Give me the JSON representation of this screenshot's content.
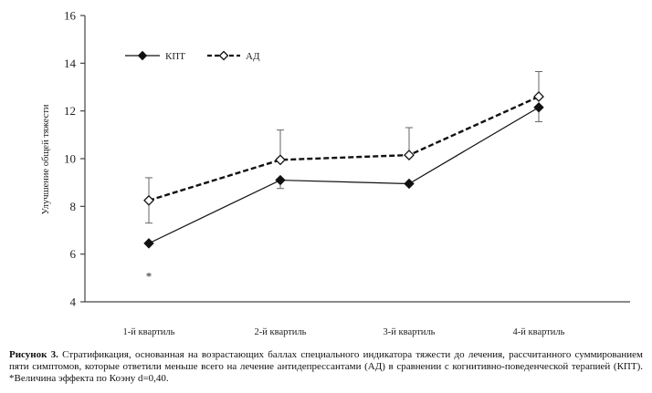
{
  "chart_data": {
    "type": "line",
    "categories": [
      "1-й квартиль",
      "2-й квартиль",
      "3-й квартиль",
      "4-й квартиль"
    ],
    "ylabel": "Улучшение общей тяжести",
    "ylim": [
      4,
      16
    ],
    "yticks": [
      "4",
      "6",
      "8",
      "10",
      "12",
      "14",
      "16"
    ],
    "legend_position": "top-left",
    "series": [
      {
        "name": "КПТ",
        "marker": "filled-diamond",
        "line_style": "solid",
        "values": [
          6.45,
          9.1,
          8.95,
          12.15
        ],
        "error_low": [
          null,
          8.75,
          null,
          11.55
        ],
        "error_high": [
          null,
          9.1,
          null,
          12.15
        ]
      },
      {
        "name": "АД",
        "marker": "open-diamond",
        "line_style": "dashed",
        "values": [
          8.25,
          9.95,
          10.15,
          12.6
        ],
        "error_low": [
          7.3,
          9.95,
          10.15,
          12.6
        ],
        "error_high": [
          9.2,
          11.2,
          11.3,
          13.65
        ]
      }
    ],
    "annotations": [
      {
        "text": "*",
        "category": "1-й квартиль",
        "y": 5.2
      }
    ],
    "grid": false
  },
  "caption": {
    "label": "Рисунок 3.",
    "text": "Стратификация, основанная на возрастающих баллах специального индикатора тяжести до лечения, рассчитанного суммированием пяти симптомов, которые ответили меньше всего на лечение антидепрессантами (АД) в сравнении с когнитивно-поведенческой терапией (КПТ). *Величина эффекта по Коэну d=0,40."
  },
  "colors": {
    "line": "#111111",
    "axis": "#444444",
    "marker_fill": "#111111",
    "open_marker_fill": "#ffffff",
    "error_bar": "#666666"
  }
}
